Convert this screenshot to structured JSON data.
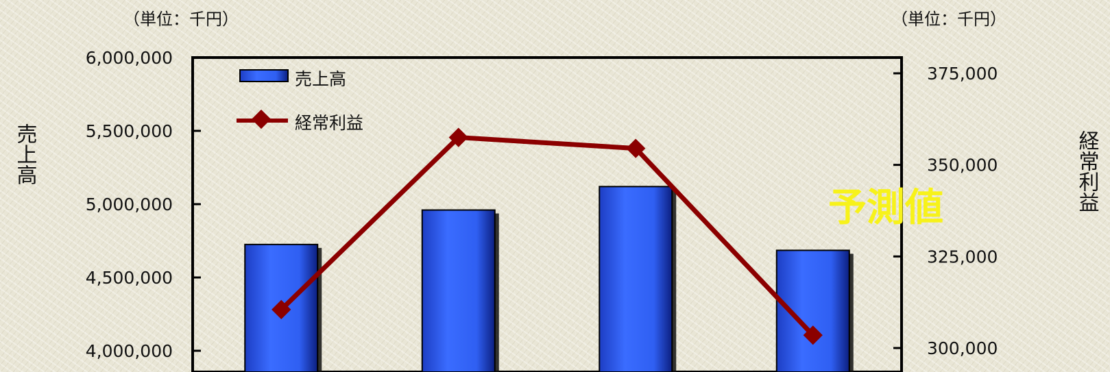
{
  "chart_data": {
    "type": "bar",
    "categories": [
      "",
      "",
      "",
      ""
    ],
    "series": [
      {
        "name": "売上高",
        "type": "bar",
        "axis": "left",
        "color": "#3366ff",
        "values": [
          4725000,
          4960000,
          5120000,
          4685000
        ]
      },
      {
        "name": "経常利益",
        "type": "line",
        "axis": "right",
        "color": "#8b0000",
        "values": [
          310500,
          357500,
          354500,
          303500
        ]
      }
    ],
    "left_axis": {
      "label": "売上高",
      "unit": "（単位：千円）",
      "ylim": [
        4000000,
        6000000
      ],
      "ticks": [
        "4,000,000",
        "4,500,000",
        "5,000,000",
        "5,500,000",
        "6,000,000"
      ]
    },
    "right_axis": {
      "label": "経常利益",
      "unit": "（単位：千円）",
      "ylim": [
        300000,
        375000
      ],
      "ticks": [
        "300,000",
        "325,000",
        "350,000",
        "375,000"
      ]
    },
    "annotation": "予測値",
    "legend": {
      "placement": "top-left"
    },
    "grid": false
  }
}
